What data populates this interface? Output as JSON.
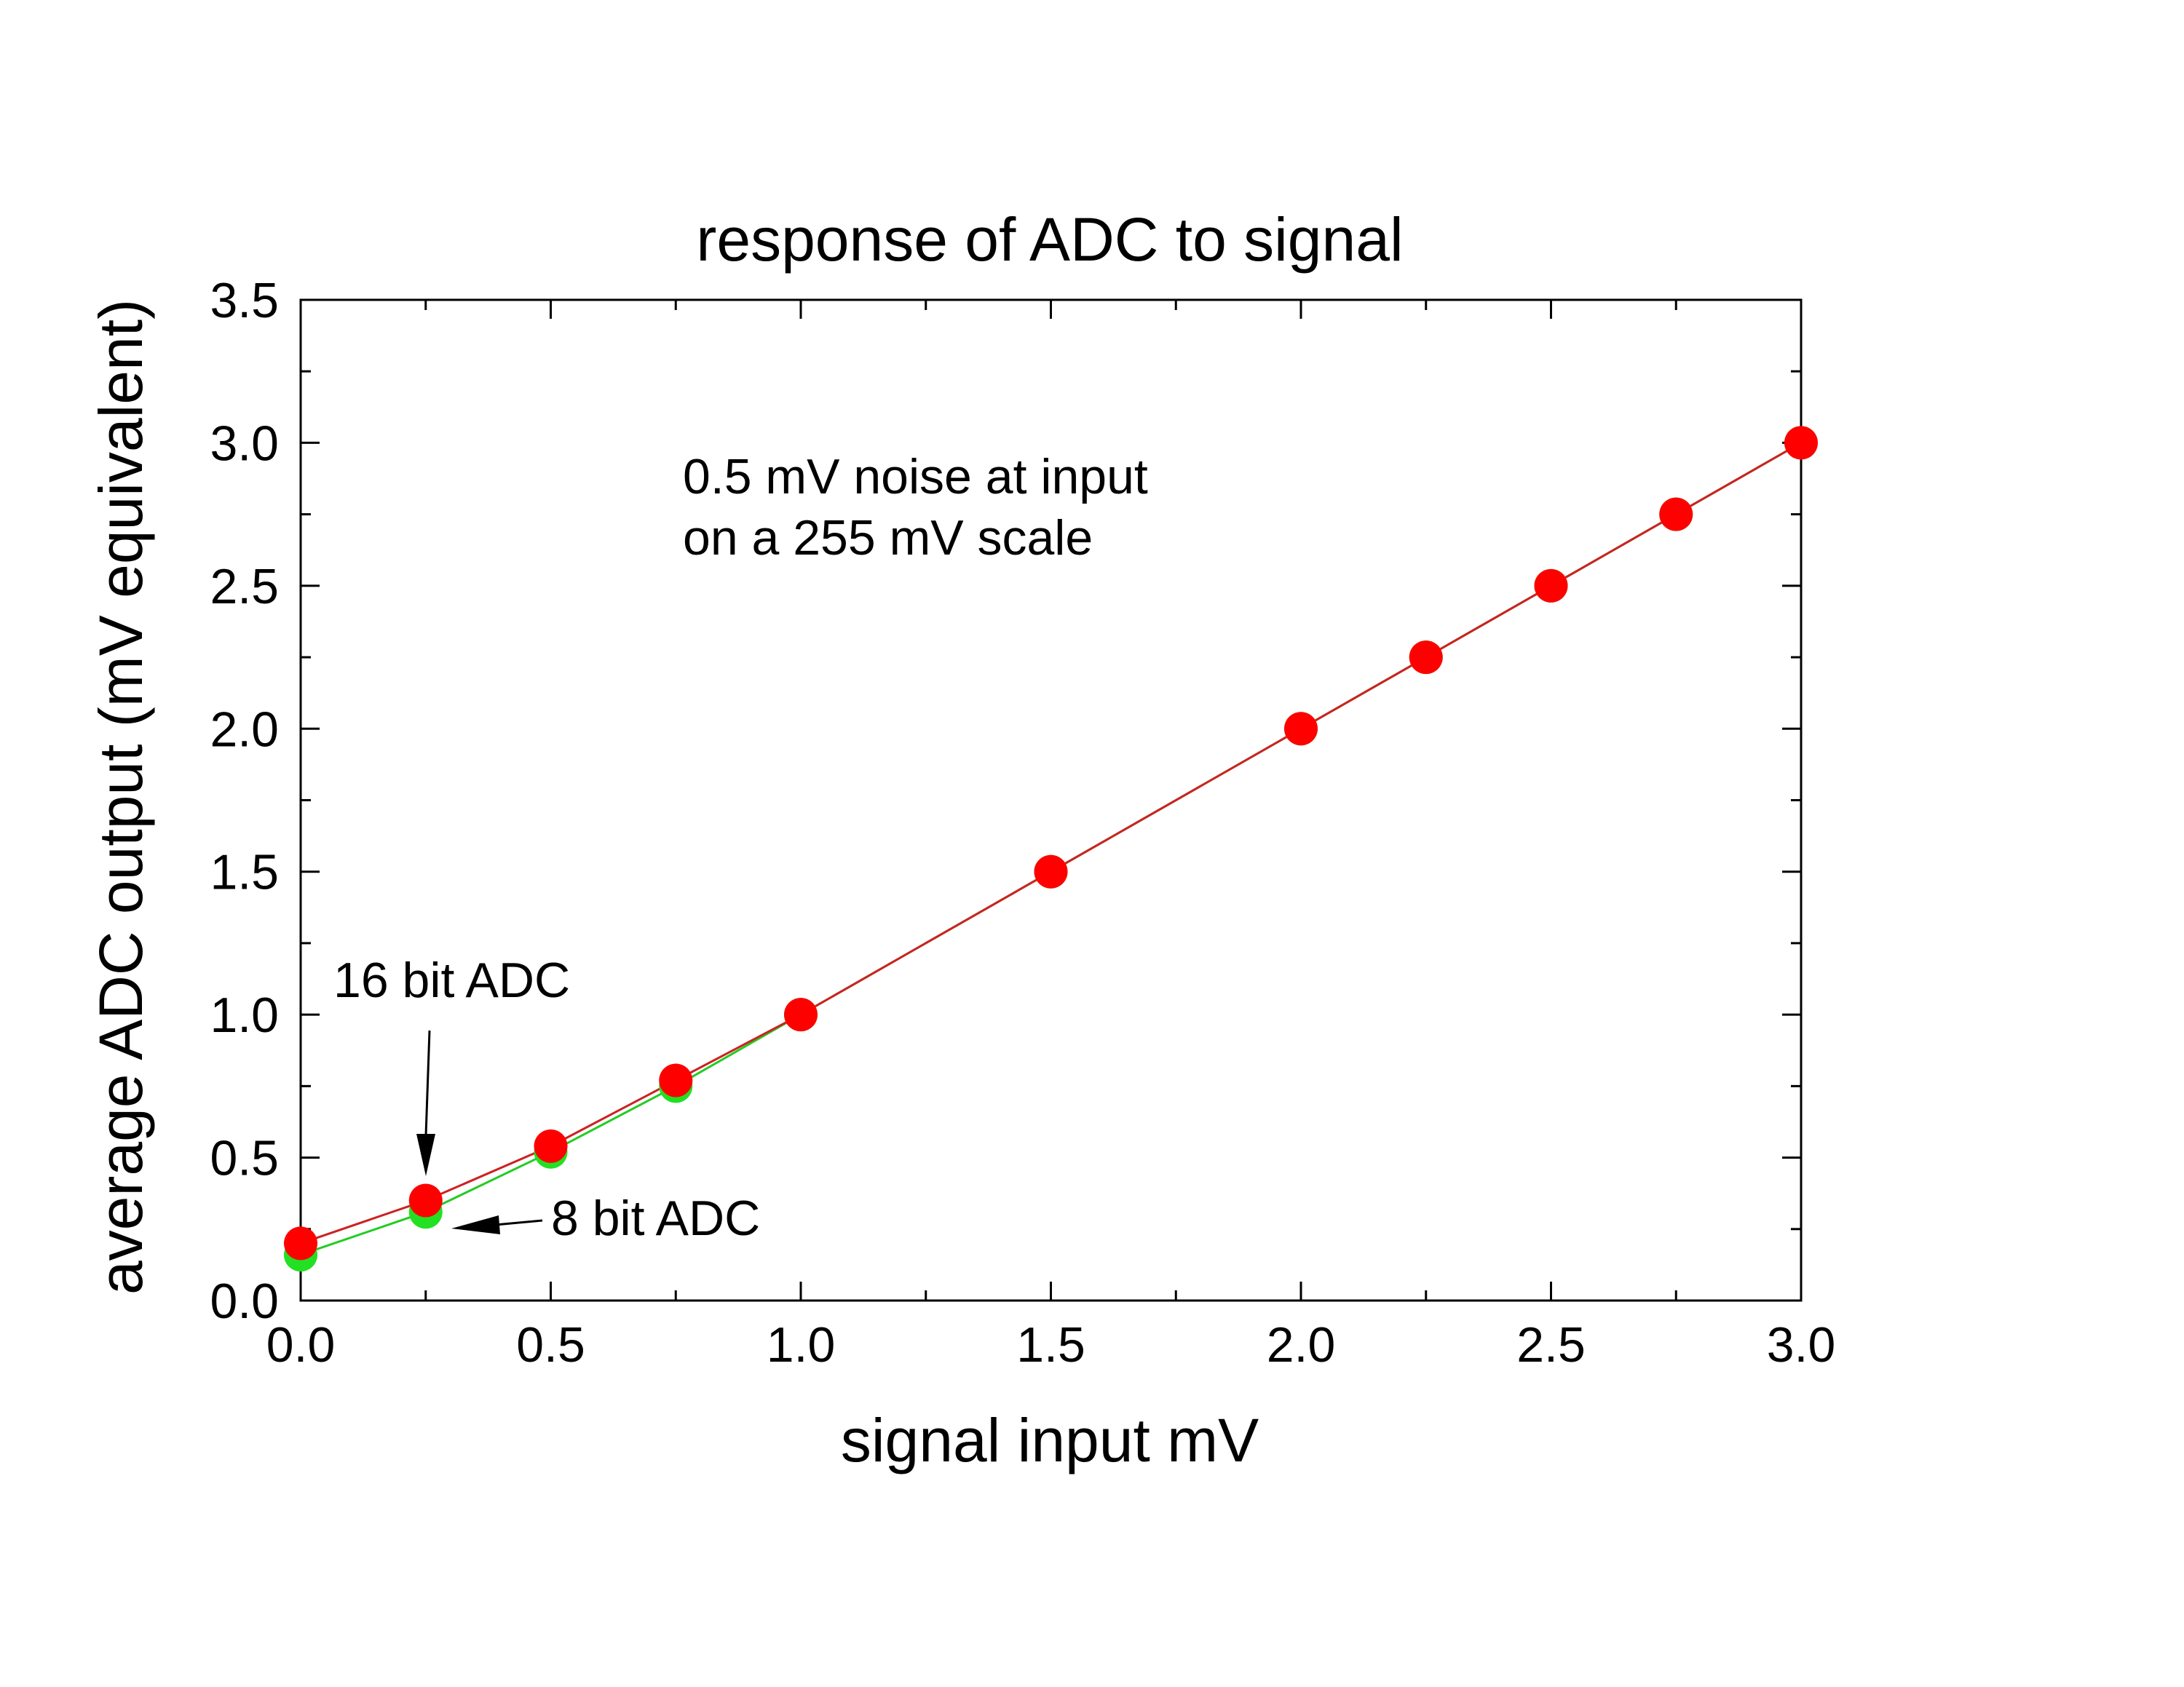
{
  "chart_data": {
    "type": "scatter",
    "title": "response of ADC to signal",
    "xlabel": "signal input mV",
    "ylabel": "average ADC output (mV equivalent)",
    "xlim": [
      0,
      3.0
    ],
    "ylim": [
      0,
      3.5
    ],
    "x_ticks": [
      "0.0",
      "0.5",
      "1.0",
      "1.5",
      "2.0",
      "2.5",
      "3.0"
    ],
    "y_ticks": [
      "0.0",
      "0.5",
      "1.0",
      "1.5",
      "2.0",
      "2.5",
      "3.0",
      "3.5"
    ],
    "grid": false,
    "series": [
      {
        "name": "8 bit ADC",
        "color": "#22e022",
        "line_color": "#22cc22",
        "x": [
          0.0,
          0.25,
          0.5,
          0.75,
          1.0,
          1.5,
          2.0,
          2.25,
          2.5,
          2.75,
          3.0
        ],
        "y": [
          0.16,
          0.31,
          0.52,
          0.75,
          1.0,
          1.5,
          2.0,
          2.25,
          2.5,
          2.75,
          3.0
        ]
      },
      {
        "name": "16 bit ADC",
        "color": "#ff0000",
        "line_color": "#cc2222",
        "x": [
          0.0,
          0.25,
          0.5,
          0.75,
          1.0,
          1.5,
          2.0,
          2.25,
          2.5,
          2.75,
          3.0
        ],
        "y": [
          0.2,
          0.35,
          0.54,
          0.77,
          1.0,
          1.5,
          2.0,
          2.25,
          2.5,
          2.75,
          3.0
        ]
      }
    ],
    "annotations": {
      "note_line1": "0.5 mV noise at input",
      "note_line2": "on a 255 mV scale",
      "label_16bit": "16 bit ADC",
      "label_8bit": "8 bit ADC"
    }
  }
}
